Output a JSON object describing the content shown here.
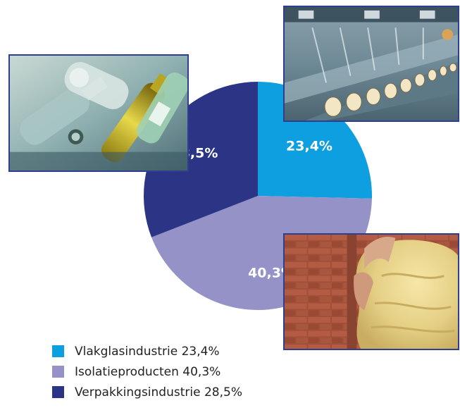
{
  "chart_data": {
    "type": "pie",
    "title": "",
    "slices": [
      {
        "label": "Vlakglasindustrie",
        "value": 23.4,
        "display": "23,4%",
        "legend": "Vlakglasindustrie 23,4%",
        "color": "#0e9fe0"
      },
      {
        "label": "Isolatieproducten",
        "value": 40.3,
        "display": "40,3%",
        "legend": "Isolatieproducten 40,3%",
        "color": "#9592c8"
      },
      {
        "label": "Verpakkingsindustrie",
        "value": 28.5,
        "display": "28,5%",
        "legend": "Verpakkingsindustrie 28,5%",
        "color": "#2c3585"
      }
    ],
    "legend_position": "bottom-left",
    "start_angle": "top",
    "direction": "clockwise"
  },
  "photos": [
    {
      "subject": "glass-bottles-photo"
    },
    {
      "subject": "glass-factory-photo"
    },
    {
      "subject": "glass-wool-insulation-photo"
    }
  ]
}
